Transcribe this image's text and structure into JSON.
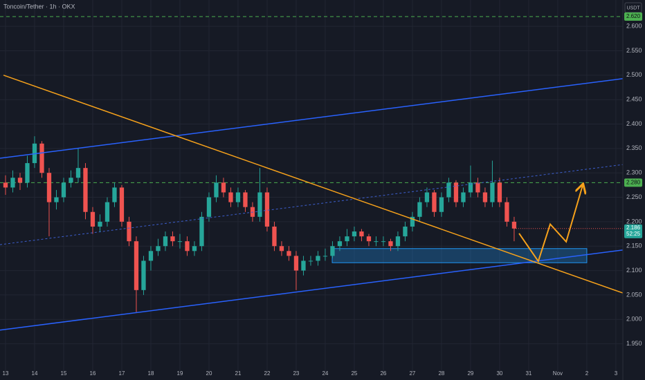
{
  "chart_data": {
    "type": "candlestick",
    "title": "Toncoin/Tether · 1h · OKX",
    "currency": "USDT",
    "countdown": "52:25",
    "up_color": "#26a69a",
    "down_color": "#ef5350",
    "grid": true,
    "xlim": [
      12.81,
      34.24
    ],
    "ylim": [
      1.89,
      2.654
    ],
    "xticks": [
      13,
      14,
      15,
      16,
      17,
      18,
      19,
      20,
      21,
      22,
      23,
      24,
      25,
      26,
      27,
      28,
      29,
      30,
      31,
      {
        "value": 32,
        "label": "Nov"
      },
      {
        "value": 33,
        "label": "2"
      },
      {
        "value": 34,
        "label": "3"
      }
    ],
    "yticks": [
      {
        "value": 1.95,
        "label": "1.950"
      },
      {
        "value": 2.0,
        "label": "2.000"
      },
      {
        "value": 2.05,
        "label": "2.050"
      },
      {
        "value": 2.1,
        "label": "2.100"
      },
      {
        "value": 2.15,
        "label": "2.150"
      },
      {
        "value": 2.2,
        "label": "2.200"
      },
      {
        "value": 2.25,
        "label": "2.250"
      },
      {
        "value": 2.3,
        "label": "2.300"
      },
      {
        "value": 2.35,
        "label": "2.350"
      },
      {
        "value": 2.4,
        "label": "2.400"
      },
      {
        "value": 2.45,
        "label": "2.450"
      },
      {
        "value": 2.5,
        "label": "2.500"
      },
      {
        "value": 2.55,
        "label": "2.550"
      },
      {
        "value": 2.6,
        "label": "2.600"
      }
    ],
    "x": [
      13,
      13.25,
      13.5,
      13.75,
      14,
      14.25,
      14.5,
      14.75,
      15,
      15.25,
      15.5,
      15.75,
      16,
      16.25,
      16.5,
      16.75,
      17,
      17.25,
      17.5,
      17.75,
      18,
      18.25,
      18.5,
      18.75,
      19,
      19.25,
      19.5,
      19.75,
      20,
      20.25,
      20.5,
      20.75,
      21,
      21.25,
      21.5,
      21.75,
      22,
      22.25,
      22.5,
      22.75,
      23,
      23.25,
      23.5,
      23.75,
      24,
      24.25,
      24.5,
      24.75,
      25,
      25.25,
      25.5,
      25.75,
      26,
      26.25,
      26.5,
      26.75,
      27,
      27.25,
      27.5,
      27.75,
      28,
      28.25,
      28.5,
      28.75,
      29,
      29.25,
      29.5,
      29.75,
      30,
      30.25,
      30.5
    ],
    "open": [
      2.28,
      2.27,
      2.29,
      2.28,
      2.32,
      2.36,
      2.3,
      2.24,
      2.25,
      2.28,
      2.29,
      2.31,
      2.22,
      2.19,
      2.2,
      2.24,
      2.27,
      2.2,
      2.16,
      2.06,
      2.12,
      2.14,
      2.15,
      2.17,
      2.16,
      2.16,
      2.14,
      2.15,
      2.21,
      2.25,
      2.28,
      2.26,
      2.24,
      2.26,
      2.23,
      2.21,
      2.26,
      2.19,
      2.15,
      2.14,
      2.13,
      2.1,
      2.12,
      2.12,
      2.13,
      2.13,
      2.15,
      2.16,
      2.17,
      2.18,
      2.17,
      2.16,
      2.16,
      2.16,
      2.15,
      2.17,
      2.19,
      2.21,
      2.24,
      2.26,
      2.22,
      2.25,
      2.28,
      2.24,
      2.26,
      2.28,
      2.26,
      2.24,
      2.28,
      2.24,
      2.2
    ],
    "high": [
      2.295,
      2.305,
      2.3,
      2.335,
      2.375,
      2.365,
      2.31,
      2.265,
      2.29,
      2.305,
      2.35,
      2.32,
      2.23,
      2.215,
      2.25,
      2.28,
      2.275,
      2.21,
      2.17,
      2.13,
      2.15,
      2.165,
      2.18,
      2.18,
      2.175,
      2.17,
      2.16,
      2.22,
      2.26,
      2.295,
      2.29,
      2.27,
      2.27,
      2.265,
      2.24,
      2.31,
      2.27,
      2.2,
      2.16,
      2.15,
      2.14,
      2.13,
      2.13,
      2.14,
      2.145,
      2.16,
      2.17,
      2.185,
      2.19,
      2.185,
      2.175,
      2.17,
      2.17,
      2.165,
      2.18,
      2.2,
      2.22,
      2.25,
      2.27,
      2.265,
      2.26,
      2.29,
      2.285,
      2.27,
      2.315,
      2.29,
      2.27,
      2.325,
      2.29,
      2.25,
      2.21
    ],
    "low": [
      2.255,
      2.26,
      2.265,
      2.27,
      2.31,
      2.29,
      2.17,
      2.225,
      2.24,
      2.27,
      2.28,
      2.205,
      2.175,
      2.18,
      2.19,
      2.23,
      2.19,
      2.15,
      2.015,
      2.05,
      2.1,
      2.13,
      2.14,
      2.15,
      2.145,
      2.13,
      2.13,
      2.14,
      2.2,
      2.24,
      2.25,
      2.23,
      2.23,
      2.22,
      2.2,
      2.2,
      2.18,
      2.14,
      2.13,
      2.12,
      2.06,
      2.09,
      2.11,
      2.11,
      2.12,
      2.125,
      2.14,
      2.15,
      2.16,
      2.16,
      2.15,
      2.15,
      2.15,
      2.14,
      2.14,
      2.16,
      2.18,
      2.2,
      2.23,
      2.21,
      2.21,
      2.24,
      2.23,
      2.23,
      2.25,
      2.25,
      2.23,
      2.23,
      2.23,
      2.19,
      2.16
    ],
    "close": [
      2.27,
      2.29,
      2.28,
      2.32,
      2.36,
      2.3,
      2.24,
      2.25,
      2.28,
      2.29,
      2.31,
      2.22,
      2.19,
      2.2,
      2.24,
      2.27,
      2.2,
      2.16,
      2.06,
      2.12,
      2.14,
      2.15,
      2.17,
      2.16,
      2.16,
      2.14,
      2.15,
      2.21,
      2.25,
      2.28,
      2.26,
      2.24,
      2.26,
      2.23,
      2.21,
      2.26,
      2.19,
      2.15,
      2.14,
      2.13,
      2.1,
      2.12,
      2.12,
      2.13,
      2.13,
      2.15,
      2.16,
      2.17,
      2.18,
      2.17,
      2.16,
      2.16,
      2.16,
      2.15,
      2.17,
      2.19,
      2.21,
      2.24,
      2.26,
      2.22,
      2.25,
      2.28,
      2.24,
      2.26,
      2.28,
      2.26,
      2.24,
      2.28,
      2.24,
      2.2,
      2.186
    ],
    "levels": [
      {
        "value": 2.62,
        "label": "2.620",
        "color": "#4caf50"
      },
      {
        "value": 2.28,
        "label": "2.280",
        "color": "#4caf50"
      }
    ],
    "lines": [
      {
        "color": "#2962ff",
        "dashed": false,
        "x": [
          12.81,
          34.24
        ],
        "y": [
          2.33,
          2.493
        ]
      },
      {
        "color": "#2962ff",
        "dashed": false,
        "x": [
          12.81,
          34.24
        ],
        "y": [
          1.978,
          2.142
        ]
      },
      {
        "color": "#3d5fcf",
        "dashed": true,
        "x": [
          12.81,
          34.24
        ],
        "y": [
          2.153,
          2.317
        ]
      },
      {
        "color": "#f7a21b",
        "dashed": false,
        "x": [
          12.93,
          34.24
        ],
        "y": [
          2.5,
          2.054
        ]
      },
      {
        "color": "#f7a21b",
        "dashed": false,
        "arrow": true,
        "x": [
          30.67,
          31.33,
          31.74,
          32.29,
          32.86
        ],
        "y": [
          2.176,
          2.119,
          2.195,
          2.159,
          2.275
        ]
      }
    ],
    "zone": {
      "color": "#2196f3",
      "x": [
        24.24,
        33.0
      ],
      "y": [
        2.116,
        2.145
      ]
    }
  }
}
